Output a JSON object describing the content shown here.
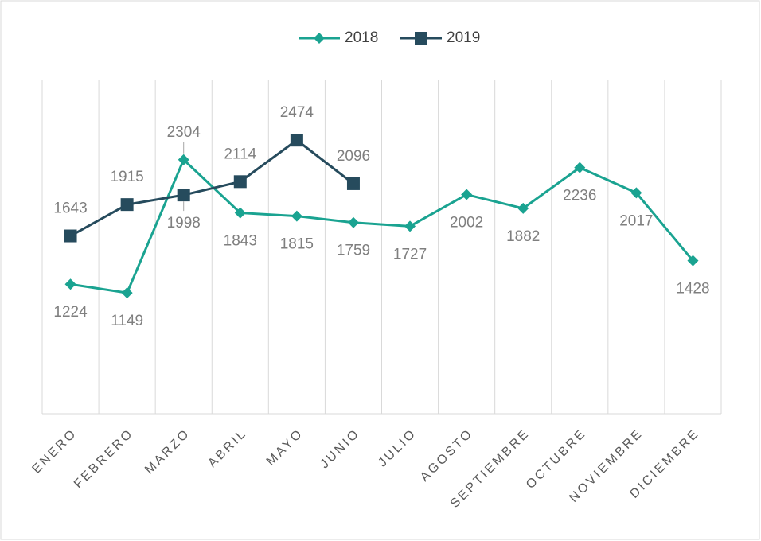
{
  "chart_data": {
    "type": "line",
    "categories": [
      "ENERO",
      "FEBRERO",
      "MARZO",
      "ABRIL",
      "MAYO",
      "JUNIO",
      "JULIO",
      "AGOSTO",
      "SEPTIEMBRE",
      "OCTUBRE",
      "NOVIEMBRE",
      "DICIEMBRE"
    ],
    "series": [
      {
        "name": "2018",
        "color": "#1aa391",
        "marker": "diamond",
        "values": [
          1224,
          1149,
          2304,
          1843,
          1815,
          1759,
          1727,
          2002,
          1882,
          2236,
          2017,
          1428
        ]
      },
      {
        "name": "2019",
        "color": "#264b5d",
        "marker": "square",
        "values": [
          1643,
          1915,
          1998,
          2114,
          2474,
          2096,
          null,
          null,
          null,
          null,
          null,
          null
        ]
      }
    ],
    "ylim": [
      100,
      3000
    ],
    "grid": true,
    "legend": "top"
  }
}
